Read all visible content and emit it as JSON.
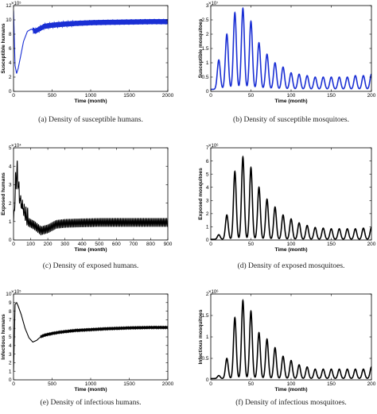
{
  "chart_data": [
    {
      "id": "a",
      "type": "line",
      "caption": "(a)  Density of susceptible humans.",
      "xlabel": "Time (month)",
      "ylabel": "Susceptible humans",
      "multiplier": "×10⁵",
      "xlim": [
        0,
        2000
      ],
      "ylim": [
        0,
        12
      ],
      "xticks": [
        0,
        500,
        1000,
        1500,
        2000
      ],
      "yticks": [
        0,
        2,
        4,
        6,
        8,
        10,
        12
      ],
      "color": "#1a2fd4",
      "series": [
        {
          "x": [
            0,
            20,
            40,
            60,
            90,
            130,
            180,
            230,
            280,
            330,
            400,
            500,
            650,
            800,
            1000,
            1200,
            1500,
            1800,
            2000
          ],
          "y": [
            11.3,
            3.6,
            2.5,
            3.2,
            4.8,
            7.0,
            8.4,
            8.7,
            8.4,
            8.7,
            9.1,
            9.25,
            9.4,
            9.5,
            9.6,
            9.65,
            9.7,
            9.75,
            9.75
          ]
        }
      ],
      "oscillation": {
        "start": 250,
        "period": 12,
        "amplitude": 0.35,
        "decay": 0
      }
    },
    {
      "id": "b",
      "type": "line",
      "caption": "(b)  Density of susceptible mosquitoes.",
      "xlabel": "Time (month)",
      "ylabel": "Susceptible mosquitoes",
      "multiplier": "×10⁷",
      "xlim": [
        0,
        200
      ],
      "ylim": [
        0,
        3
      ],
      "xticks": [
        0,
        50,
        100,
        150,
        200
      ],
      "yticks": [
        0,
        0.5,
        1,
        1.5,
        2,
        2.5,
        3
      ],
      "color": "#1a2fd4",
      "pulses": {
        "centers": [
          10,
          20,
          30,
          40,
          50,
          60,
          70,
          80,
          90,
          100,
          110,
          120,
          130,
          140,
          150,
          160,
          170,
          180,
          190,
          200
        ],
        "peaks": [
          1.1,
          2.0,
          2.75,
          2.9,
          2.45,
          1.7,
          1.3,
          1.0,
          0.85,
          0.65,
          0.6,
          0.55,
          0.5,
          0.5,
          0.5,
          0.5,
          0.5,
          0.55,
          0.55,
          0.6
        ],
        "baseline": 0.07,
        "width": 2.6
      }
    },
    {
      "id": "c",
      "type": "line",
      "caption": "(c)  Density of exposed humans.",
      "xlabel": "Time (month)",
      "ylabel": "Exposed humans",
      "multiplier": "×10⁴",
      "xlim": [
        0,
        900
      ],
      "ylim": [
        0,
        5
      ],
      "xticks": [
        0,
        100,
        200,
        300,
        400,
        500,
        600,
        700,
        800,
        900
      ],
      "yticks": [
        0,
        1,
        2,
        3,
        4,
        5
      ],
      "color": "#000000",
      "series": [
        {
          "x": [
            0,
            12,
            20,
            35,
            50,
            80,
            120,
            160,
            200,
            250,
            300,
            400,
            500,
            600,
            700,
            800,
            900
          ],
          "y": [
            1.0,
            2.6,
            3.5,
            2.1,
            1.6,
            1.0,
            0.8,
            0.5,
            0.6,
            0.85,
            0.9,
            0.93,
            0.95,
            0.95,
            0.95,
            0.95,
            0.95
          ]
        }
      ],
      "oscillation": {
        "start": 0,
        "period": 9,
        "amplitude": 0.22,
        "decay": 0
      },
      "spikes": {
        "x": [
          12,
          22,
          32,
          42,
          52,
          62,
          72,
          82
        ],
        "y": [
          3.5,
          4.2,
          3.2,
          2.6,
          2.4,
          2.1,
          1.8,
          1.6
        ]
      }
    },
    {
      "id": "d",
      "type": "line",
      "caption": "(d)  Density of exposed mosquitoes.",
      "xlabel": "Time (month)",
      "ylabel": "Exposed mosquitoes",
      "multiplier": "×10⁶",
      "xlim": [
        0,
        200
      ],
      "ylim": [
        0,
        7
      ],
      "xticks": [
        0,
        50,
        100,
        150,
        200
      ],
      "yticks": [
        0,
        1,
        2,
        3,
        4,
        5,
        6,
        7
      ],
      "color": "#000000",
      "pulses": {
        "centers": [
          10,
          20,
          30,
          40,
          50,
          60,
          70,
          80,
          90,
          100,
          110,
          120,
          130,
          140,
          150,
          160,
          170,
          180,
          190,
          200
        ],
        "peaks": [
          0.4,
          1.9,
          5.2,
          6.3,
          5.5,
          4.0,
          3.1,
          2.5,
          1.9,
          1.6,
          1.3,
          1.1,
          0.95,
          0.9,
          0.85,
          0.85,
          0.85,
          0.85,
          0.9,
          0.95
        ],
        "baseline": 0.05,
        "width": 2.4
      }
    },
    {
      "id": "e",
      "type": "line",
      "caption": "(e)  Density of infectious humans.",
      "xlabel": "Time (month)",
      "ylabel": "Infectious humans",
      "multiplier": "×10⁵",
      "xlim": [
        0,
        2000
      ],
      "ylim": [
        0,
        10
      ],
      "xticks": [
        0,
        500,
        1000,
        1500,
        2000
      ],
      "yticks": [
        0,
        1,
        2,
        3,
        4,
        5,
        6,
        7,
        8,
        9,
        10
      ],
      "color": "#000000",
      "series": [
        {
          "x": [
            0,
            20,
            40,
            60,
            100,
            150,
            200,
            250,
            300,
            350,
            400,
            500,
            600,
            800,
            1000,
            1200,
            1500,
            1800,
            2000
          ],
          "y": [
            1.0,
            8.8,
            9.0,
            8.6,
            7.6,
            6.0,
            4.9,
            4.4,
            4.6,
            5.0,
            5.2,
            5.4,
            5.55,
            5.75,
            5.85,
            5.95,
            6.05,
            6.1,
            6.1
          ]
        }
      ],
      "oscillation": {
        "start": 350,
        "period": 12,
        "amplitude": 0.12,
        "decay": 0
      }
    },
    {
      "id": "f",
      "type": "line",
      "caption": "(f)  Density of infectious mosquitoes.",
      "xlabel": "Time (month)",
      "ylabel": "Infectious mosquitoes",
      "multiplier": "×10⁶",
      "xlim": [
        0,
        200
      ],
      "ylim": [
        0,
        2
      ],
      "xticks": [
        0,
        50,
        100,
        150,
        200
      ],
      "yticks": [
        0,
        0.5,
        1,
        1.5,
        2
      ],
      "color": "#000000",
      "pulses": {
        "centers": [
          10,
          20,
          30,
          40,
          50,
          60,
          70,
          80,
          90,
          100,
          110,
          120,
          130,
          140,
          150,
          160,
          170,
          180,
          190,
          200
        ],
        "peaks": [
          0.1,
          0.5,
          1.45,
          1.85,
          1.6,
          1.1,
          0.95,
          0.75,
          0.55,
          0.45,
          0.35,
          0.3,
          0.25,
          0.25,
          0.25,
          0.25,
          0.25,
          0.25,
          0.25,
          0.3
        ],
        "baseline": 0.03,
        "width": 2.4
      }
    }
  ]
}
